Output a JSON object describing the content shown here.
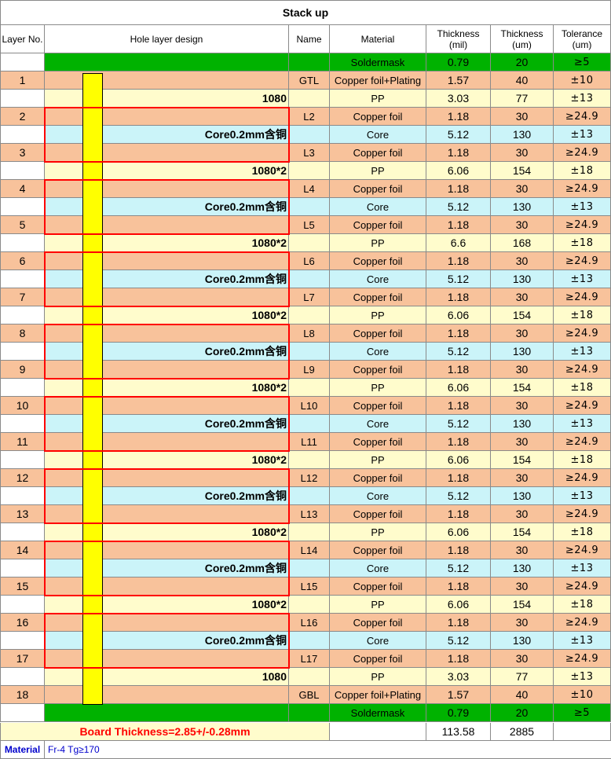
{
  "title": "Stack up",
  "headers": {
    "layer_no": "Layer No.",
    "hole_design": "Hole layer design",
    "name": "Name",
    "material": "Material",
    "thickness_mil": "Thickness\n(mil)",
    "thickness_um": "Thickness\n(um)",
    "tolerance": "Tolerance\n(um)"
  },
  "colors": {
    "copper": "#f8c29b",
    "pp": "#fffccc",
    "core": "#cbf4f9",
    "soldermask": "#00b200",
    "drill": "#ffff00",
    "outline": "#ff0000",
    "board_text": "#ff0000",
    "material_label": "#0000cc"
  },
  "rows": [
    {
      "layer": "",
      "design": "",
      "name": "",
      "material": "Soldermask",
      "mil": "0.79",
      "um": "20",
      "tol": "≥5",
      "kind": "soldermask"
    },
    {
      "layer": "1",
      "design": "",
      "name": "GTL",
      "material": "Copper foil+Plating",
      "mil": "1.57",
      "um": "40",
      "tol": "±10",
      "kind": "copper"
    },
    {
      "layer": "",
      "design": "1080",
      "name": "",
      "material": "PP",
      "mil": "3.03",
      "um": "77",
      "tol": "±13",
      "kind": "pp"
    },
    {
      "layer": "2",
      "design": "",
      "name": "L2",
      "material": "Copper foil",
      "mil": "1.18",
      "um": "30",
      "tol": "≥24.9",
      "kind": "copper"
    },
    {
      "layer": "",
      "design": "Core0.2mm含铜",
      "name": "",
      "material": "Core",
      "mil": "5.12",
      "um": "130",
      "tol": "±13",
      "kind": "core"
    },
    {
      "layer": "3",
      "design": "",
      "name": "L3",
      "material": "Copper foil",
      "mil": "1.18",
      "um": "30",
      "tol": "≥24.9",
      "kind": "copper"
    },
    {
      "layer": "",
      "design": "1080*2",
      "name": "",
      "material": "PP",
      "mil": "6.06",
      "um": "154",
      "tol": "±18",
      "kind": "pp"
    },
    {
      "layer": "4",
      "design": "",
      "name": "L4",
      "material": "Copper foil",
      "mil": "1.18",
      "um": "30",
      "tol": "≥24.9",
      "kind": "copper"
    },
    {
      "layer": "",
      "design": "Core0.2mm含铜",
      "name": "",
      "material": "Core",
      "mil": "5.12",
      "um": "130",
      "tol": "±13",
      "kind": "core"
    },
    {
      "layer": "5",
      "design": "",
      "name": "L5",
      "material": "Copper foil",
      "mil": "1.18",
      "um": "30",
      "tol": "≥24.9",
      "kind": "copper"
    },
    {
      "layer": "",
      "design": "1080*2",
      "name": "",
      "material": "PP",
      "mil": "6.6",
      "um": "168",
      "tol": "±18",
      "kind": "pp"
    },
    {
      "layer": "6",
      "design": "",
      "name": "L6",
      "material": "Copper foil",
      "mil": "1.18",
      "um": "30",
      "tol": "≥24.9",
      "kind": "copper"
    },
    {
      "layer": "",
      "design": "Core0.2mm含铜",
      "name": "",
      "material": "Core",
      "mil": "5.12",
      "um": "130",
      "tol": "±13",
      "kind": "core"
    },
    {
      "layer": "7",
      "design": "",
      "name": "L7",
      "material": "Copper foil",
      "mil": "1.18",
      "um": "30",
      "tol": "≥24.9",
      "kind": "copper"
    },
    {
      "layer": "",
      "design": "1080*2",
      "name": "",
      "material": "PP",
      "mil": "6.06",
      "um": "154",
      "tol": "±18",
      "kind": "pp"
    },
    {
      "layer": "8",
      "design": "",
      "name": "L8",
      "material": "Copper foil",
      "mil": "1.18",
      "um": "30",
      "tol": "≥24.9",
      "kind": "copper"
    },
    {
      "layer": "",
      "design": "Core0.2mm含铜",
      "name": "",
      "material": "Core",
      "mil": "5.12",
      "um": "130",
      "tol": "±13",
      "kind": "core"
    },
    {
      "layer": "9",
      "design": "",
      "name": "L9",
      "material": "Copper foil",
      "mil": "1.18",
      "um": "30",
      "tol": "≥24.9",
      "kind": "copper"
    },
    {
      "layer": "",
      "design": "1080*2",
      "name": "",
      "material": "PP",
      "mil": "6.06",
      "um": "154",
      "tol": "±18",
      "kind": "pp"
    },
    {
      "layer": "10",
      "design": "",
      "name": "L10",
      "material": "Copper foil",
      "mil": "1.18",
      "um": "30",
      "tol": "≥24.9",
      "kind": "copper"
    },
    {
      "layer": "",
      "design": "Core0.2mm含铜",
      "name": "",
      "material": "Core",
      "mil": "5.12",
      "um": "130",
      "tol": "±13",
      "kind": "core"
    },
    {
      "layer": "11",
      "design": "",
      "name": "L11",
      "material": "Copper foil",
      "mil": "1.18",
      "um": "30",
      "tol": "≥24.9",
      "kind": "copper"
    },
    {
      "layer": "",
      "design": "1080*2",
      "name": "",
      "material": "PP",
      "mil": "6.06",
      "um": "154",
      "tol": "±18",
      "kind": "pp"
    },
    {
      "layer": "12",
      "design": "",
      "name": "L12",
      "material": "Copper foil",
      "mil": "1.18",
      "um": "30",
      "tol": "≥24.9",
      "kind": "copper"
    },
    {
      "layer": "",
      "design": "Core0.2mm含铜",
      "name": "",
      "material": "Core",
      "mil": "5.12",
      "um": "130",
      "tol": "±13",
      "kind": "core"
    },
    {
      "layer": "13",
      "design": "",
      "name": "L13",
      "material": "Copper foil",
      "mil": "1.18",
      "um": "30",
      "tol": "≥24.9",
      "kind": "copper"
    },
    {
      "layer": "",
      "design": "1080*2",
      "name": "",
      "material": "PP",
      "mil": "6.06",
      "um": "154",
      "tol": "±18",
      "kind": "pp"
    },
    {
      "layer": "14",
      "design": "",
      "name": "L14",
      "material": "Copper foil",
      "mil": "1.18",
      "um": "30",
      "tol": "≥24.9",
      "kind": "copper"
    },
    {
      "layer": "",
      "design": "Core0.2mm含铜",
      "name": "",
      "material": "Core",
      "mil": "5.12",
      "um": "130",
      "tol": "±13",
      "kind": "core"
    },
    {
      "layer": "15",
      "design": "",
      "name": "L15",
      "material": "Copper foil",
      "mil": "1.18",
      "um": "30",
      "tol": "≥24.9",
      "kind": "copper"
    },
    {
      "layer": "",
      "design": "1080*2",
      "name": "",
      "material": "PP",
      "mil": "6.06",
      "um": "154",
      "tol": "±18",
      "kind": "pp"
    },
    {
      "layer": "16",
      "design": "",
      "name": "L16",
      "material": "Copper foil",
      "mil": "1.18",
      "um": "30",
      "tol": "≥24.9",
      "kind": "copper"
    },
    {
      "layer": "",
      "design": "Core0.2mm含铜",
      "name": "",
      "material": "Core",
      "mil": "5.12",
      "um": "130",
      "tol": "±13",
      "kind": "core"
    },
    {
      "layer": "17",
      "design": "",
      "name": "L17",
      "material": "Copper foil",
      "mil": "1.18",
      "um": "30",
      "tol": "≥24.9",
      "kind": "copper"
    },
    {
      "layer": "",
      "design": "1080",
      "name": "",
      "material": "PP",
      "mil": "3.03",
      "um": "77",
      "tol": "±13",
      "kind": "pp"
    },
    {
      "layer": "18",
      "design": "",
      "name": "GBL",
      "material": "Copper foil+Plating",
      "mil": "1.57",
      "um": "40",
      "tol": "±10",
      "kind": "copper"
    },
    {
      "layer": "",
      "design": "",
      "name": "",
      "material": "Soldermask",
      "mil": "0.79",
      "um": "20",
      "tol": "≥5",
      "kind": "soldermask"
    }
  ],
  "totals": {
    "board_thickness": "Board Thickness=2.85+/-0.28mm",
    "mil": "113.58",
    "um": "2885"
  },
  "material_line": {
    "label": "Material",
    "value": "Fr-4 Tg≥170"
  }
}
